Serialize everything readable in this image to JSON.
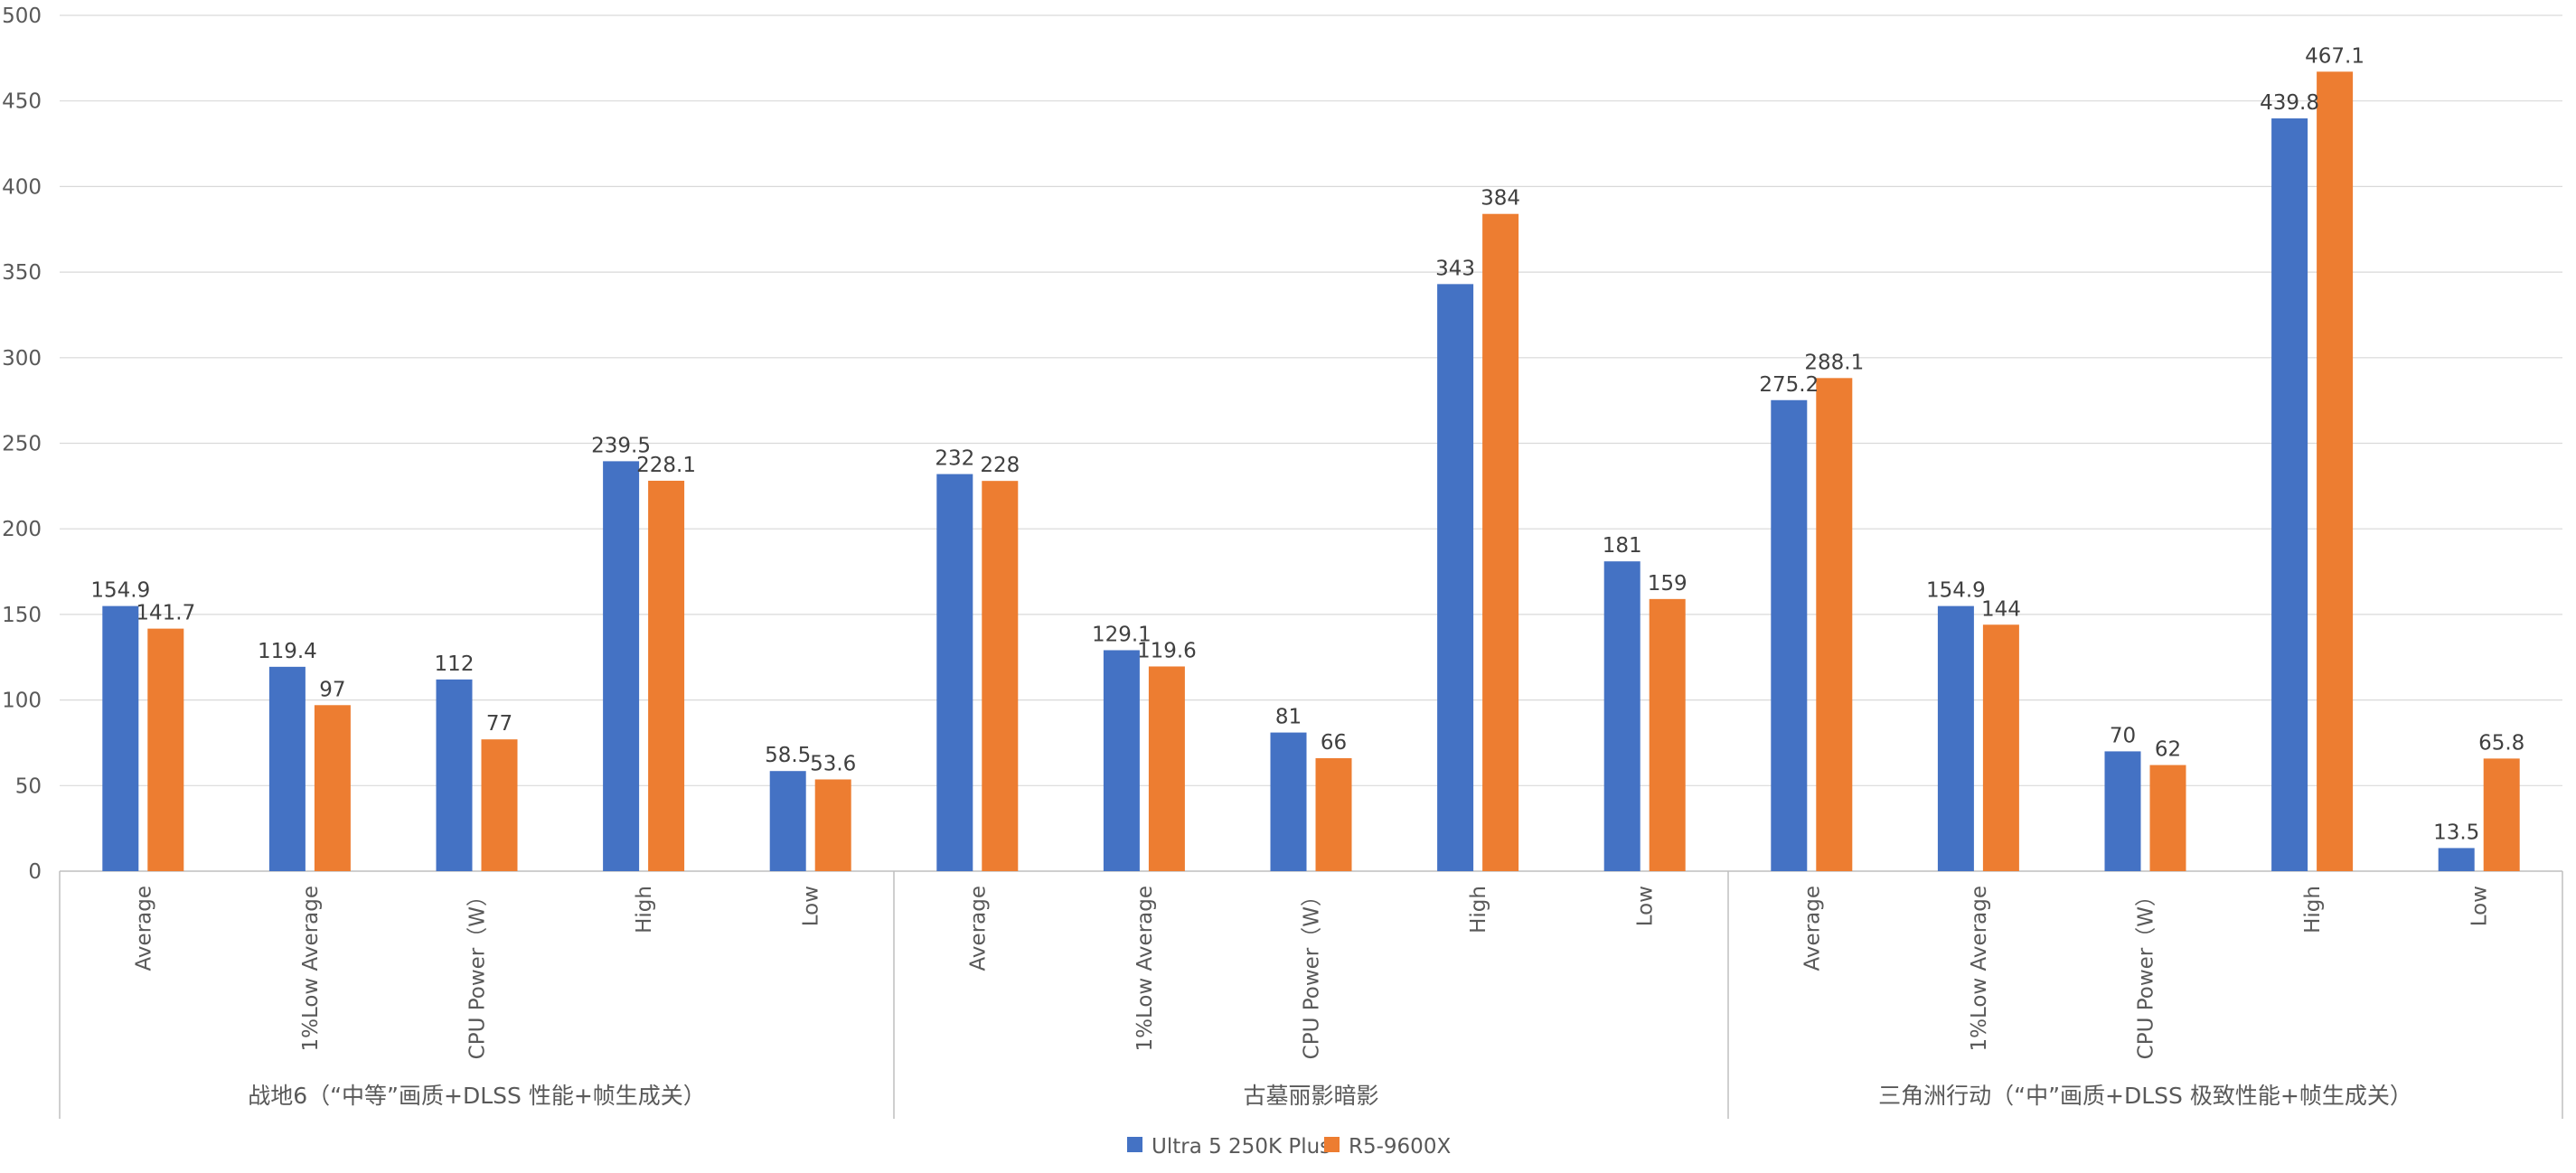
{
  "chart_data": {
    "type": "bar",
    "ylim": [
      0,
      500
    ],
    "yticks": [
      0,
      50,
      100,
      150,
      200,
      250,
      300,
      350,
      400,
      450,
      500
    ],
    "grid": true,
    "legend_position": "bottom-center",
    "colors": [
      "#4472C4",
      "#ED7D31"
    ],
    "groups": [
      {
        "name": "战地6（“中等”画质+DLSS 性能+帧生成关）",
        "categories": [
          "Average",
          "1%Low Average",
          "CPU Power（W）",
          "High",
          "Low"
        ],
        "labels_a": [
          "154.9",
          "119.4",
          "112",
          "239.5",
          "58.5"
        ],
        "labels_b": [
          "141.7",
          "97",
          "77",
          "228.1",
          "53.6"
        ]
      },
      {
        "name": "古墓丽影暗影",
        "categories": [
          "Average",
          "1%Low Average",
          "CPU Power（W）",
          "High",
          "Low"
        ],
        "labels_a": [
          "232",
          "129.1",
          "81",
          "343",
          "181"
        ],
        "labels_b": [
          "228",
          "119.6",
          "66",
          "384",
          "159"
        ]
      },
      {
        "name": "三角洲行动（“中”画质+DLSS 极致性能+帧生成关）",
        "categories": [
          "Average",
          "1%Low Average",
          "CPU Power（W）",
          "High",
          "Low"
        ],
        "labels_a": [
          "275.2",
          "154.9",
          "70",
          "439.8",
          "13.5"
        ],
        "labels_b": [
          "288.1",
          "144",
          "62",
          "467.1",
          "65.8"
        ]
      }
    ],
    "series": [
      {
        "name": "Ultra 5 250K Plus"
      },
      {
        "name": "R5-9600X"
      }
    ]
  }
}
